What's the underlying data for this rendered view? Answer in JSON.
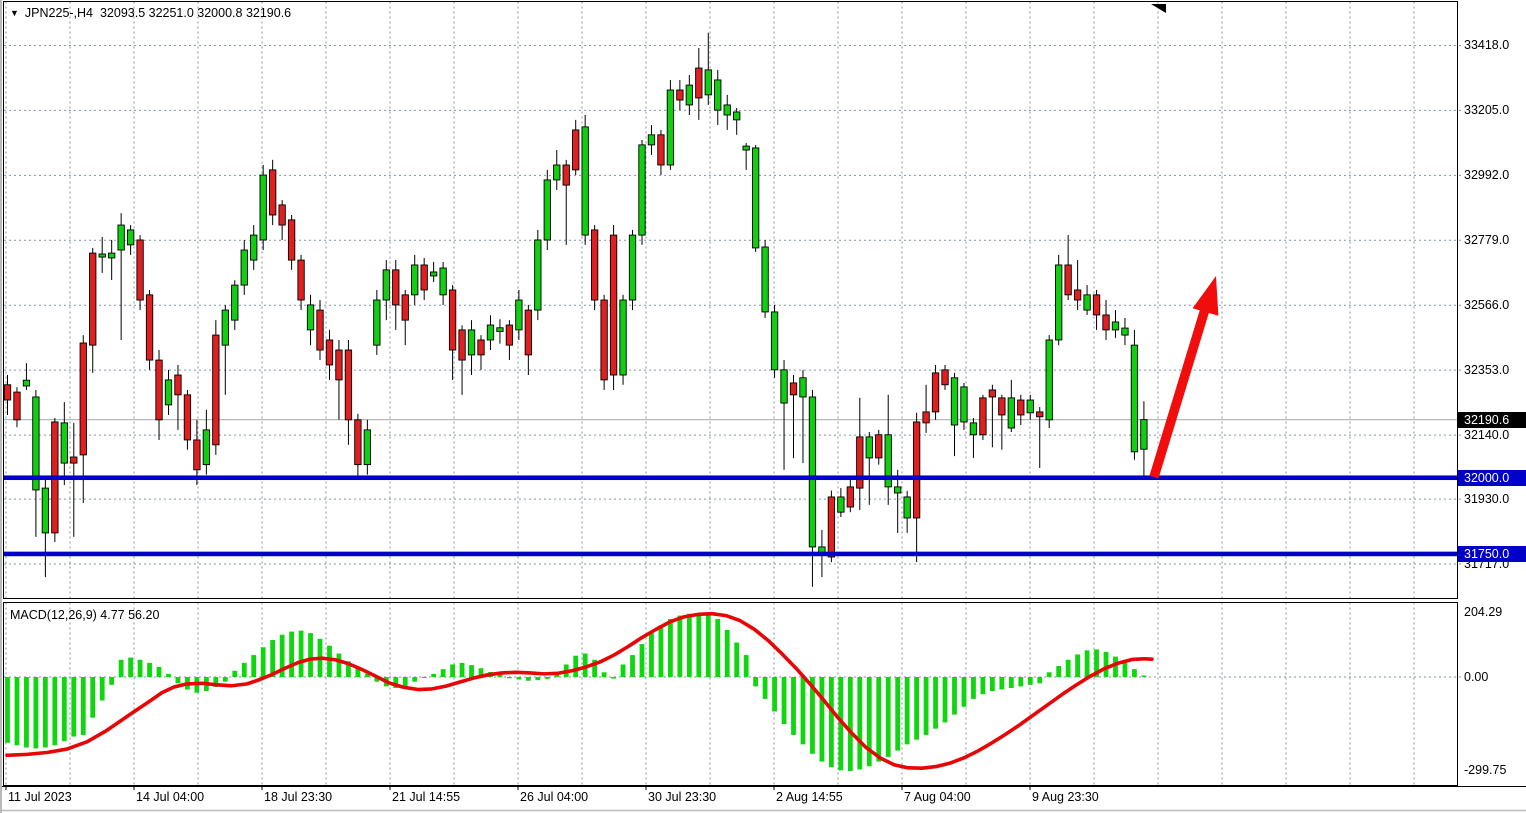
{
  "window": {
    "symbol": "JPN225-,H4",
    "quote_line": "32093.5 32251.0 32000.8 32190.6",
    "dropdown_marker": "▼"
  },
  "colors": {
    "bull": "#12CD12",
    "bear": "#DE2020",
    "wick": "#000000",
    "grid": "#8294A6",
    "support_line": "#0000C8",
    "signal_line": "#E80505",
    "arrow": "#F20D0D",
    "current_price_line": "#B8B8B8",
    "badge_current_bg": "#000000",
    "badge_support_bg": "#0000C8",
    "histogram": "#0FD60F",
    "pane_border": "#000000"
  },
  "price_axis": {
    "gridline_labels": [
      "33418.0",
      "33205.0",
      "32992.0",
      "32779.0",
      "32566.0",
      "32353.0",
      "32140.0",
      "31930.0",
      "31717.0"
    ],
    "current_price": "32190.6",
    "support_badges": [
      "32000.0",
      "31750.0"
    ]
  },
  "time_axis": {
    "labels": [
      "11 Jul 2023",
      "14 Jul 04:00",
      "18 Jul 23:30",
      "21 Jul 14:55",
      "26 Jul 04:00",
      "30 Jul 23:30",
      "2 Aug 14:55",
      "7 Aug 04:00",
      "9 Aug 23:30"
    ]
  },
  "macd_panel": {
    "label": "MACD(12,26,9) 4.77 56.20",
    "axis_labels": [
      "204.29",
      "0.00",
      "-299.75"
    ]
  },
  "chart_data": {
    "type": "candlestick",
    "symbol": "JPN225-",
    "timeframe": "H4",
    "current_ohlc": {
      "open": 32093.5,
      "high": 32251.0,
      "low": 32000.8,
      "close": 32190.6
    },
    "price_axis_ticks": [
      33418.0,
      33205.0,
      32992.0,
      32779.0,
      32566.0,
      32353.0,
      32140.0,
      31930.0,
      31717.0
    ],
    "support_levels": [
      32000.0,
      31750.0
    ],
    "annotation": "red up arrow from 32000 support toward 32780",
    "candles_ohlc": [
      [
        32305,
        32337,
        32206,
        32255
      ],
      [
        32281,
        32297,
        32166,
        32190
      ],
      [
        32301,
        32376,
        32288,
        32320
      ],
      [
        31960,
        32288,
        31806,
        32265
      ],
      [
        31819,
        31993,
        31674,
        31966
      ],
      [
        32183,
        32196,
        31789,
        31819
      ],
      [
        32048,
        32248,
        31976,
        32180
      ],
      [
        32068,
        32180,
        31806,
        32048
      ],
      [
        32442,
        32468,
        31917,
        32075
      ],
      [
        32737,
        32754,
        32344,
        32435
      ],
      [
        32724,
        32790,
        32672,
        32734
      ],
      [
        32721,
        32780,
        32649,
        32737
      ],
      [
        32747,
        32868,
        32452,
        32829
      ],
      [
        32764,
        32829,
        32731,
        32813
      ],
      [
        32780,
        32796,
        32550,
        32583
      ],
      [
        32600,
        32616,
        32354,
        32386
      ],
      [
        32386,
        32419,
        32124,
        32190
      ],
      [
        32239,
        32354,
        32206,
        32321
      ],
      [
        32337,
        32370,
        32157,
        32272
      ],
      [
        32272,
        32288,
        32092,
        32124
      ],
      [
        32124,
        32190,
        31976,
        32026
      ],
      [
        32043,
        32223,
        32010,
        32157
      ],
      [
        32468,
        32517,
        32075,
        32108
      ],
      [
        32435,
        32567,
        32272,
        32550
      ],
      [
        32517,
        32648,
        32485,
        32632
      ],
      [
        32632,
        32780,
        32600,
        32747
      ],
      [
        32714,
        32829,
        32682,
        32796
      ],
      [
        32780,
        33026,
        32747,
        32993
      ],
      [
        33010,
        33043,
        32829,
        32862
      ],
      [
        32895,
        32911,
        32780,
        32829
      ],
      [
        32846,
        32862,
        32682,
        32714
      ],
      [
        32714,
        32731,
        32550,
        32583
      ],
      [
        32485,
        32600,
        32435,
        32567
      ],
      [
        32550,
        32583,
        32386,
        32419
      ],
      [
        32452,
        32485,
        32321,
        32370
      ],
      [
        32419,
        32452,
        32190,
        32321
      ],
      [
        32419,
        32452,
        32108,
        32190
      ],
      [
        32190,
        32210,
        31993,
        32043
      ],
      [
        32043,
        32190,
        32010,
        32157
      ],
      [
        32435,
        32616,
        32403,
        32583
      ],
      [
        32583,
        32714,
        32517,
        32682
      ],
      [
        32682,
        32714,
        32485,
        32567
      ],
      [
        32600,
        32616,
        32435,
        32517
      ],
      [
        32600,
        32731,
        32567,
        32698
      ],
      [
        32698,
        32721,
        32583,
        32616
      ],
      [
        32662,
        32708,
        32642,
        32675
      ],
      [
        32600,
        32708,
        32567,
        32688
      ],
      [
        32616,
        32632,
        32321,
        32419
      ],
      [
        32485,
        32500,
        32272,
        32386
      ],
      [
        32403,
        32517,
        32337,
        32485
      ],
      [
        32452,
        32468,
        32354,
        32403
      ],
      [
        32452,
        32533,
        32419,
        32501
      ],
      [
        32480,
        32520,
        32440,
        32492
      ],
      [
        32501,
        32517,
        32386,
        32435
      ],
      [
        32485,
        32616,
        32452,
        32583
      ],
      [
        32550,
        32567,
        32337,
        32403
      ],
      [
        32550,
        32813,
        32517,
        32780
      ],
      [
        32780,
        33010,
        32747,
        32977
      ],
      [
        32977,
        33075,
        32944,
        33026
      ],
      [
        33026,
        33043,
        32764,
        32960
      ],
      [
        33141,
        33174,
        32993,
        33010
      ],
      [
        32796,
        33190,
        32764,
        33151
      ],
      [
        32813,
        32829,
        32550,
        32583
      ],
      [
        32583,
        32600,
        32288,
        32321
      ],
      [
        32796,
        32829,
        32288,
        32337
      ],
      [
        32337,
        32600,
        32305,
        32583
      ],
      [
        32583,
        32813,
        32550,
        32796
      ],
      [
        32796,
        33108,
        32764,
        33092
      ],
      [
        33092,
        33157,
        33059,
        33125
      ],
      [
        33125,
        33141,
        32993,
        33026
      ],
      [
        33026,
        33305,
        33010,
        33272
      ],
      [
        33272,
        33305,
        33206,
        33239
      ],
      [
        33223,
        33321,
        33190,
        33288
      ],
      [
        33344,
        33410,
        33174,
        33246
      ],
      [
        33256,
        33460,
        33223,
        33338
      ],
      [
        33206,
        33338,
        33157,
        33305
      ],
      [
        33190,
        33256,
        33141,
        33223
      ],
      [
        33174,
        33213,
        33125,
        33200
      ],
      [
        33075,
        33098,
        33010,
        33088
      ],
      [
        32754,
        33092,
        32741,
        33082
      ],
      [
        32544,
        32780,
        32524,
        32757
      ],
      [
        32354,
        32567,
        32328,
        32544
      ],
      [
        32245,
        32386,
        32026,
        32354
      ],
      [
        32311,
        32337,
        32064,
        32272
      ],
      [
        32265,
        32354,
        32048,
        32328
      ],
      [
        31773,
        32288,
        31642,
        32265
      ],
      [
        31746,
        31829,
        31674,
        31773
      ],
      [
        31937,
        31958,
        31723,
        31740
      ],
      [
        31887,
        31966,
        31871,
        31937
      ],
      [
        31970,
        31993,
        31887,
        31904
      ],
      [
        32134,
        32262,
        31894,
        31966
      ],
      [
        32065,
        32150,
        31911,
        32134
      ],
      [
        32141,
        32157,
        32043,
        32065
      ],
      [
        31970,
        32272,
        31911,
        32141
      ],
      [
        31950,
        32026,
        31819,
        31970
      ],
      [
        31868,
        31957,
        31819,
        31937
      ],
      [
        32183,
        32213,
        31723,
        31868
      ],
      [
        32216,
        32305,
        32147,
        32180
      ],
      [
        32344,
        32370,
        32190,
        32216
      ],
      [
        32354,
        32370,
        32288,
        32305
      ],
      [
        32173,
        32344,
        32071,
        32328
      ],
      [
        32183,
        32311,
        32157,
        32298
      ],
      [
        32141,
        32196,
        32065,
        32180
      ],
      [
        32262,
        32272,
        32124,
        32141
      ],
      [
        32288,
        32305,
        32100,
        32265
      ],
      [
        32262,
        32272,
        32092,
        32206
      ],
      [
        32163,
        32321,
        32150,
        32262
      ],
      [
        32255,
        32272,
        32173,
        32206
      ],
      [
        32213,
        32272,
        32190,
        32255
      ],
      [
        32216,
        32232,
        32032,
        32200
      ],
      [
        32190,
        32468,
        32163,
        32452
      ],
      [
        32452,
        32731,
        32435,
        32698
      ],
      [
        32698,
        32796,
        32583,
        32600
      ],
      [
        32616,
        32714,
        32550,
        32583
      ],
      [
        32550,
        32632,
        32534,
        32600
      ],
      [
        32600,
        32616,
        32485,
        32534
      ],
      [
        32534,
        32583,
        32452,
        32485
      ],
      [
        32485,
        32550,
        32459,
        32511
      ],
      [
        32468,
        32524,
        32435,
        32491
      ],
      [
        32085,
        32485,
        32059,
        32435
      ],
      [
        32093.5,
        32251.0,
        32000.8,
        32190.6
      ]
    ],
    "macd": {
      "label": "MACD(12,26,9)",
      "last_macd": 4.77,
      "last_signal": 56.2,
      "axis_ticks": [
        204.29,
        0.0,
        -299.75
      ],
      "histogram": [
        -210,
        -218,
        -225,
        -228,
        -225,
        -218,
        -205,
        -190,
        -185,
        -130,
        -75,
        -25,
        55,
        62,
        55,
        45,
        32,
        10,
        -20,
        -40,
        -50,
        -45,
        -32,
        -15,
        20,
        45,
        70,
        95,
        118,
        135,
        145,
        148,
        140,
        122,
        100,
        75,
        50,
        28,
        10,
        -15,
        -30,
        -35,
        -28,
        -15,
        0,
        10,
        25,
        40,
        45,
        38,
        28,
        16,
        8,
        -4,
        -8,
        -12,
        -10,
        -6,
        8,
        40,
        68,
        75,
        55,
        15,
        -5,
        40,
        70,
        105,
        140,
        165,
        185,
        196,
        202,
        204,
        198,
        185,
        150,
        110,
        70,
        -30,
        -70,
        -110,
        -150,
        -185,
        -215,
        -245,
        -270,
        -288,
        -298,
        -300,
        -295,
        -285,
        -270,
        -255,
        -235,
        -215,
        -200,
        -185,
        -165,
        -145,
        -120,
        -95,
        -70,
        -55,
        -45,
        -40,
        -35,
        -30,
        -25,
        -20,
        15,
        35,
        55,
        72,
        85,
        88,
        80,
        65,
        45,
        25,
        4.77
      ],
      "signal_points": [
        [
          5,
          -250
        ],
        [
          25,
          -247
        ],
        [
          45,
          -241
        ],
        [
          65,
          -230
        ],
        [
          85,
          -207
        ],
        [
          105,
          -170
        ],
        [
          125,
          -126
        ],
        [
          145,
          -83
        ],
        [
          160,
          -50
        ],
        [
          172,
          -32
        ],
        [
          185,
          -22
        ],
        [
          200,
          -20
        ],
        [
          215,
          -25
        ],
        [
          230,
          -28
        ],
        [
          245,
          -22
        ],
        [
          258,
          -8
        ],
        [
          270,
          8
        ],
        [
          283,
          28
        ],
        [
          296,
          46
        ],
        [
          308,
          57
        ],
        [
          320,
          60
        ],
        [
          333,
          55
        ],
        [
          346,
          43
        ],
        [
          360,
          24
        ],
        [
          374,
          2
        ],
        [
          388,
          -20
        ],
        [
          402,
          -33
        ],
        [
          416,
          -40
        ],
        [
          430,
          -38
        ],
        [
          444,
          -29
        ],
        [
          458,
          -16
        ],
        [
          472,
          -3
        ],
        [
          486,
          7
        ],
        [
          500,
          13
        ],
        [
          514,
          15
        ],
        [
          528,
          13
        ],
        [
          542,
          10
        ],
        [
          556,
          12
        ],
        [
          570,
          20
        ],
        [
          584,
          32
        ],
        [
          598,
          48
        ],
        [
          612,
          70
        ],
        [
          626,
          97
        ],
        [
          640,
          126
        ],
        [
          654,
          152
        ],
        [
          668,
          176
        ],
        [
          682,
          192
        ],
        [
          696,
          200
        ],
        [
          710,
          202
        ],
        [
          724,
          196
        ],
        [
          738,
          180
        ],
        [
          752,
          153
        ],
        [
          766,
          117
        ],
        [
          780,
          74
        ],
        [
          794,
          28
        ],
        [
          808,
          -22
        ],
        [
          822,
          -75
        ],
        [
          836,
          -130
        ],
        [
          850,
          -180
        ],
        [
          864,
          -225
        ],
        [
          878,
          -258
        ],
        [
          892,
          -280
        ],
        [
          906,
          -290
        ],
        [
          920,
          -291
        ],
        [
          934,
          -286
        ],
        [
          948,
          -275
        ],
        [
          962,
          -258
        ],
        [
          976,
          -236
        ],
        [
          990,
          -210
        ],
        [
          1004,
          -182
        ],
        [
          1018,
          -152
        ],
        [
          1032,
          -120
        ],
        [
          1046,
          -88
        ],
        [
          1060,
          -56
        ],
        [
          1074,
          -26
        ],
        [
          1088,
          2
        ],
        [
          1102,
          26
        ],
        [
          1116,
          44
        ],
        [
          1130,
          56
        ],
        [
          1142,
          58
        ],
        [
          1150,
          57
        ]
      ]
    }
  }
}
